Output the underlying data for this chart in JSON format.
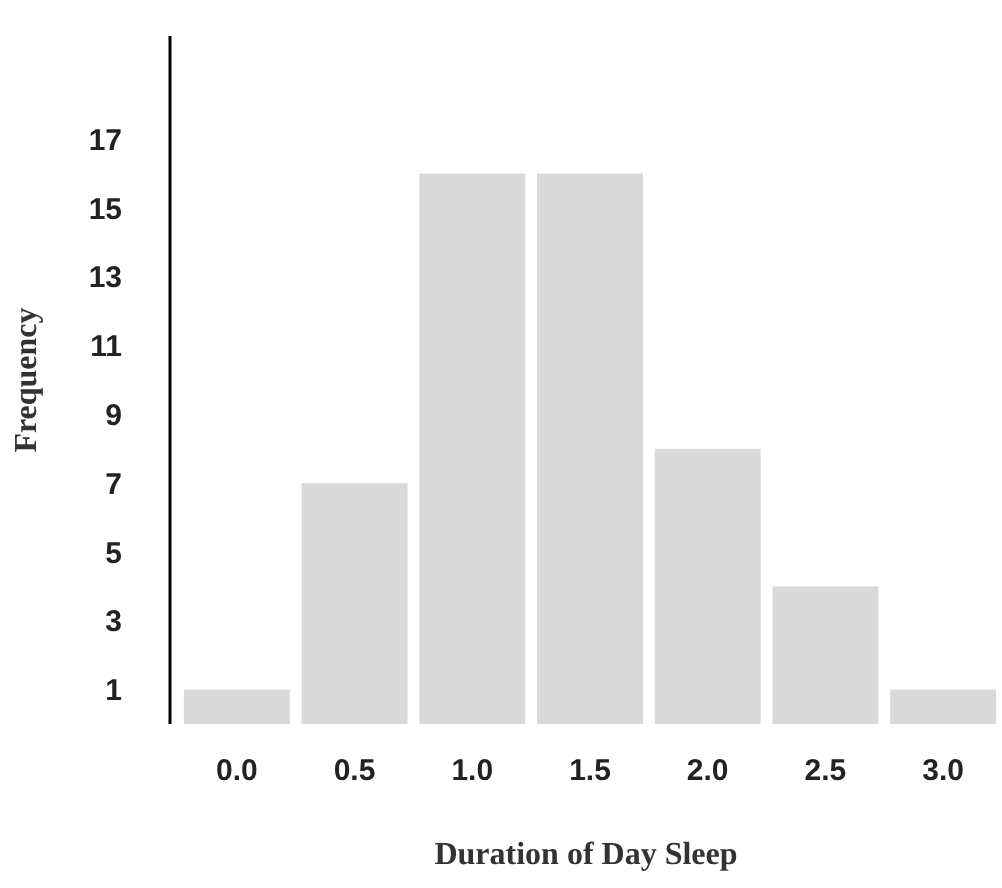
{
  "chart_data": {
    "type": "bar",
    "xlabel": "Duration of Day Sleep",
    "ylabel": "Frequency",
    "categories": [
      "0.0",
      "0.5",
      "1.0",
      "1.5",
      "2.0",
      "2.5",
      "3.0"
    ],
    "values": [
      1,
      7,
      16,
      16,
      8,
      4,
      1
    ],
    "color": "#d9d9d9",
    "ylim": [
      0,
      20
    ],
    "yticks": [
      1,
      3,
      5,
      7,
      9,
      11,
      13,
      15,
      17
    ],
    "grid": false
  }
}
